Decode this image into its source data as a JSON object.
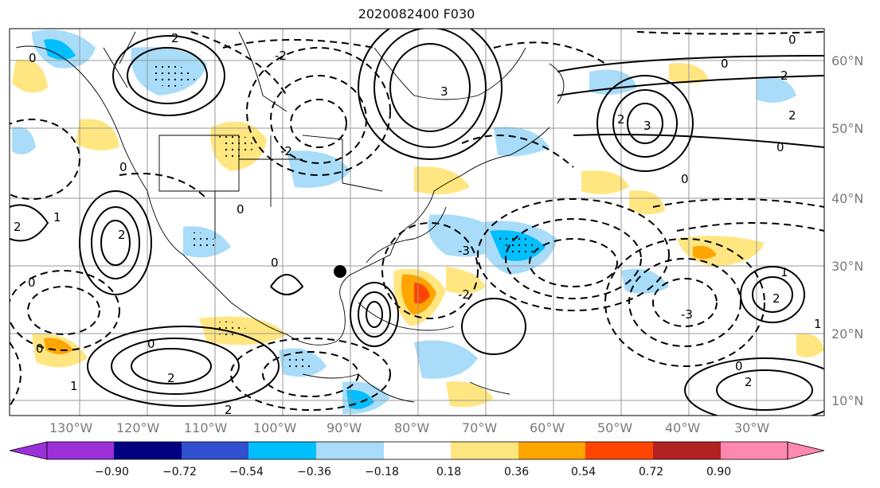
{
  "title": "2020082400 F030",
  "lon_labels": [
    "130°W",
    "120°W",
    "110°W",
    "100°W",
    "90°W",
    "80°W",
    "70°W",
    "60°W",
    "50°W",
    "40°W",
    "30°W"
  ],
  "lat_labels": [
    "60°N",
    "50°N",
    "40°N",
    "30°N",
    "20°N",
    "10°N"
  ],
  "colorbar": {
    "ticks": [
      "−0.90",
      "−0.72",
      "−0.54",
      "−0.36",
      "−0.18",
      "0.18",
      "0.36",
      "0.54",
      "0.72",
      "0.90"
    ],
    "colors": [
      "#9b30d8",
      "#000080",
      "#3050d0",
      "#00bfff",
      "#a8dcf8",
      "#ffffff",
      "#ffe680",
      "#ffa500",
      "#ff4500",
      "#b22222",
      "#ff88b0"
    ]
  },
  "contour_labels": [
    "0",
    "-2",
    "2",
    "-3",
    "3",
    "-1",
    "1"
  ],
  "marker": "storm-center-dot"
}
